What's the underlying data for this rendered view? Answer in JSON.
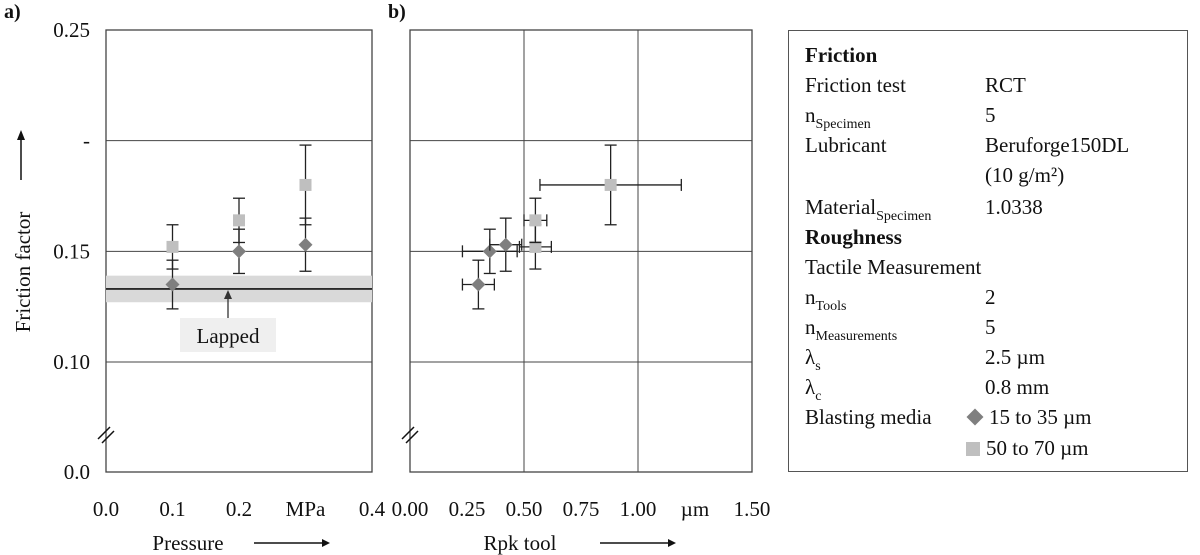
{
  "panels": {
    "a_label": "a)",
    "b_label": "b)"
  },
  "chart_data": [
    {
      "type": "scatter",
      "panel": "a)",
      "xlabel": "Pressure",
      "ylabel": "Friction factor",
      "xlim": [
        0.0,
        0.4
      ],
      "ylim": [
        0.0,
        0.25
      ],
      "y_axis_break": true,
      "x_ticks": [
        "0.0",
        "0.1",
        "0.2",
        "MPa",
        "0.4"
      ],
      "y_ticks": [
        {
          "value": 0.25,
          "label": "0.25"
        },
        {
          "value": 0.2,
          "label": "-"
        },
        {
          "value": 0.15,
          "label": "0.15"
        },
        {
          "value": 0.1,
          "label": "0.10"
        },
        {
          "value": 0.0,
          "label": "0.0"
        }
      ],
      "reference": {
        "label": "Lapped",
        "value": 0.133,
        "band": [
          0.127,
          0.139
        ]
      },
      "series": [
        {
          "name": "15 to 35 µm",
          "marker": "diamond",
          "color": "#7f7f7f",
          "points": [
            {
              "x": 0.1,
              "y": 0.135,
              "yerr": 0.011
            },
            {
              "x": 0.2,
              "y": 0.15,
              "yerr": 0.01
            },
            {
              "x": 0.3,
              "y": 0.153,
              "yerr": 0.012
            }
          ]
        },
        {
          "name": "50 to 70 µm",
          "marker": "square",
          "color": "#bfbfbf",
          "points": [
            {
              "x": 0.1,
              "y": 0.152,
              "yerr": 0.01
            },
            {
              "x": 0.2,
              "y": 0.164,
              "yerr": 0.01
            },
            {
              "x": 0.3,
              "y": 0.18,
              "yerr": 0.018
            }
          ]
        }
      ]
    },
    {
      "type": "scatter",
      "panel": "b)",
      "xlabel": "Rpk tool",
      "xlim": [
        0.0,
        1.5
      ],
      "ylim": [
        0.0,
        0.25
      ],
      "y_axis_break": true,
      "x_ticks": [
        "0.00",
        "0.25",
        "0.50",
        "0.75",
        "1.00",
        "µm",
        "1.50"
      ],
      "series": [
        {
          "name": "15 to 35 µm",
          "marker": "diamond",
          "color": "#7f7f7f",
          "points": [
            {
              "x": 0.3,
              "y": 0.135,
              "xerr": 0.07,
              "yerr": 0.011
            },
            {
              "x": 0.35,
              "y": 0.15,
              "xerr": 0.12,
              "yerr": 0.01
            },
            {
              "x": 0.42,
              "y": 0.153,
              "xerr": 0.07,
              "yerr": 0.012
            }
          ]
        },
        {
          "name": "50 to 70 µm",
          "marker": "square",
          "color": "#bfbfbf",
          "points": [
            {
              "x": 0.55,
              "y": 0.152,
              "xerr": 0.07,
              "yerr": 0.01
            },
            {
              "x": 0.55,
              "y": 0.164,
              "xerr": 0.05,
              "yerr": 0.01
            },
            {
              "x": 0.88,
              "y": 0.18,
              "xerr": 0.31,
              "yerr": 0.018
            }
          ]
        }
      ]
    }
  ],
  "info": {
    "friction_heading": "Friction",
    "friction_test_label": "Friction test",
    "friction_test_value": "RCT",
    "n_specimen_base": "n",
    "n_specimen_sub": "Specimen",
    "n_specimen_value": "5",
    "lubricant_label": "Lubricant",
    "lubricant_value": "Beruforge150DL",
    "lubricant_amount": "(10 g/m²)",
    "material_base": "Material",
    "material_sub": "Specimen",
    "material_value": "1.0338",
    "roughness_heading": "Roughness",
    "tactile_label": "Tactile Measurement",
    "n_tools_base": "n",
    "n_tools_sub": "Tools",
    "n_tools_value": "2",
    "n_meas_base": "n",
    "n_meas_sub": "Measurements",
    "n_meas_value": "5",
    "lambda_s_base": "λ",
    "lambda_s_sub": "s",
    "lambda_s_value": "2.5 µm",
    "lambda_c_base": "λ",
    "lambda_c_sub": "c",
    "lambda_c_value": "0.8 mm",
    "blasting_label": "Blasting media",
    "blasting_1": "15 to 35 µm",
    "blasting_2": "50 to 70 µm"
  }
}
